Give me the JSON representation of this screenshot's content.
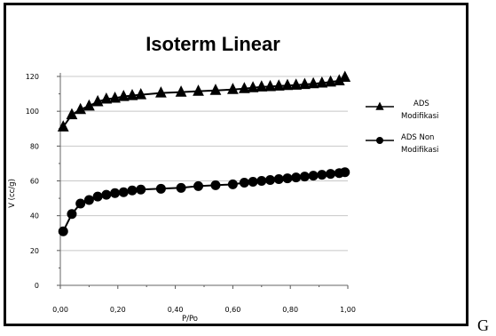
{
  "chart_data": {
    "type": "scatter",
    "title": "Isoterm Linear",
    "xlabel": "P/Po",
    "ylabel": "V (cc/g)",
    "xlim": [
      0,
      1
    ],
    "ylim": [
      0,
      120
    ],
    "x_ticks": [
      "0,00",
      "0,20",
      "0,40",
      "0,60",
      "0,80",
      "1,00"
    ],
    "y_ticks": [
      "0",
      "20",
      "40",
      "60",
      "80",
      "100",
      "120"
    ],
    "grid": true,
    "legend_position": "right",
    "series": [
      {
        "name": "ADS Modifikasi",
        "marker": "triangle",
        "color": "#000000",
        "points": [
          [
            0.01,
            91
          ],
          [
            0.04,
            98
          ],
          [
            0.07,
            101
          ],
          [
            0.1,
            103
          ],
          [
            0.13,
            105.5
          ],
          [
            0.16,
            107
          ],
          [
            0.19,
            107.5
          ],
          [
            0.22,
            108.5
          ],
          [
            0.25,
            109
          ],
          [
            0.28,
            109.5
          ],
          [
            0.35,
            110.5
          ],
          [
            0.42,
            111
          ],
          [
            0.48,
            111.5
          ],
          [
            0.54,
            112
          ],
          [
            0.6,
            112.5
          ],
          [
            0.64,
            113
          ],
          [
            0.67,
            113.5
          ],
          [
            0.7,
            114
          ],
          [
            0.73,
            114.2
          ],
          [
            0.76,
            114.5
          ],
          [
            0.79,
            114.8
          ],
          [
            0.82,
            115
          ],
          [
            0.85,
            115.4
          ],
          [
            0.88,
            115.8
          ],
          [
            0.91,
            116.2
          ],
          [
            0.94,
            116.8
          ],
          [
            0.97,
            117.5
          ],
          [
            0.99,
            119.5
          ]
        ]
      },
      {
        "name": "ADS Non Modifikasi",
        "marker": "circle",
        "color": "#000000",
        "points": [
          [
            0.01,
            31
          ],
          [
            0.04,
            41
          ],
          [
            0.07,
            47
          ],
          [
            0.1,
            49
          ],
          [
            0.13,
            51
          ],
          [
            0.16,
            52
          ],
          [
            0.19,
            53
          ],
          [
            0.22,
            53.5
          ],
          [
            0.25,
            54.5
          ],
          [
            0.28,
            55
          ],
          [
            0.35,
            55.5
          ],
          [
            0.42,
            56
          ],
          [
            0.48,
            57
          ],
          [
            0.54,
            57.5
          ],
          [
            0.6,
            58
          ],
          [
            0.64,
            59
          ],
          [
            0.67,
            59.5
          ],
          [
            0.7,
            60
          ],
          [
            0.73,
            60.5
          ],
          [
            0.76,
            61
          ],
          [
            0.79,
            61.5
          ],
          [
            0.82,
            62
          ],
          [
            0.85,
            62.5
          ],
          [
            0.88,
            63
          ],
          [
            0.91,
            63.5
          ],
          [
            0.94,
            64
          ],
          [
            0.97,
            64.5
          ],
          [
            0.99,
            65
          ]
        ]
      }
    ],
    "legend": [
      {
        "lines": [
          "ADS",
          "Modifikasi"
        ],
        "marker": "triangle"
      },
      {
        "lines": [
          "ADS Non",
          "Modifikasi"
        ],
        "marker": "circle"
      }
    ]
  },
  "trailing_text": "G"
}
